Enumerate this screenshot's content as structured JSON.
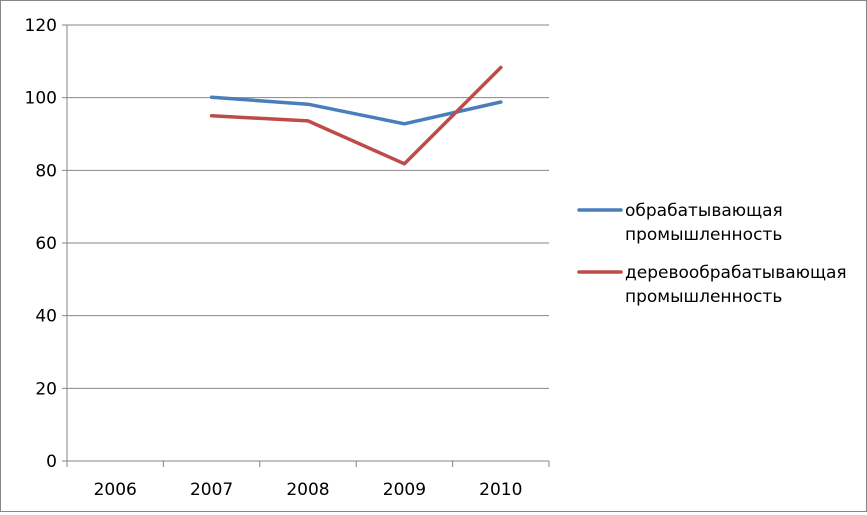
{
  "chart_data": {
    "type": "line",
    "categories": [
      "2006",
      "2007",
      "2008",
      "2009",
      "2010"
    ],
    "series": [
      {
        "name": "обрабатывающая промышленность",
        "legend_lines": [
          "обрабатывающая",
          "промышленность"
        ],
        "color": "#4a7ebb",
        "values": [
          null,
          100.1,
          98.2,
          92.8,
          98.8
        ]
      },
      {
        "name": "деревообрабатывающая промышленность",
        "legend_lines": [
          "деревообрабатывающая",
          "промышленность"
        ],
        "color": "#be4b48",
        "values": [
          null,
          95.0,
          93.6,
          81.8,
          108.3
        ]
      }
    ],
    "ylim": [
      0,
      120
    ],
    "yticks": [
      0,
      20,
      40,
      60,
      80,
      100,
      120
    ],
    "grid": true,
    "legend": "right"
  }
}
